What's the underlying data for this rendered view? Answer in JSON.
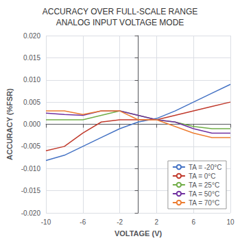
{
  "chart_data": {
    "type": "line",
    "title": "ACCURACY OVER FULL-SCALE RANGE\nANALOG INPUT VOLTAGE MODE",
    "x_label": "VOLTAGE (V)",
    "y_label": "ACCURACY (%FSR)",
    "x": [
      -10,
      -8,
      -6,
      -4,
      -2,
      0,
      2,
      4,
      6,
      8,
      10
    ],
    "series": [
      {
        "name": "TA = -20°C",
        "color": "#4472C4",
        "values": [
          -0.0082,
          -0.007,
          -0.005,
          -0.003,
          -0.001,
          0.0005,
          0.0013,
          0.003,
          0.005,
          0.007,
          0.009
        ]
      },
      {
        "name": "TA = 0°C",
        "color": "#C0392B",
        "values": [
          -0.006,
          -0.005,
          -0.002,
          0.0005,
          0.001,
          0.001,
          0.001,
          0.002,
          0.003,
          0.004,
          0.005
        ]
      },
      {
        "name": "TA = 25°C",
        "color": "#70AD47",
        "values": [
          0.001,
          0.001,
          0.001,
          0.002,
          0.003,
          0.002,
          0.001,
          0.0005,
          -0.0005,
          -0.001,
          -0.001
        ]
      },
      {
        "name": "TA = 50°C",
        "color": "#7030A0",
        "values": [
          0.0025,
          0.0022,
          0.002,
          0.003,
          0.003,
          0.002,
          0.001,
          0.0005,
          -0.001,
          -0.002,
          -0.002
        ]
      },
      {
        "name": "TA = 70°C",
        "color": "#ED7D31",
        "values": [
          0.003,
          0.003,
          0.0022,
          0.003,
          0.003,
          0.001,
          0.001,
          -0.0005,
          -0.002,
          -0.003,
          -0.003
        ]
      }
    ],
    "xlim": [
      -10,
      10
    ],
    "ylim": [
      -0.02,
      0.02
    ],
    "xticks": [
      -10,
      -6,
      -2,
      2,
      6,
      10
    ],
    "yticks": [
      {
        "value": -0.02,
        "label": "-0.020"
      },
      {
        "value": -0.015,
        "label": "-0.015"
      },
      {
        "value": -0.01,
        "label": "-0.010"
      },
      {
        "value": -0.005,
        "label": "-0.005"
      },
      {
        "value": 0,
        "label": "0.000"
      },
      {
        "value": 0.005,
        "label": "0.005"
      },
      {
        "value": 0.01,
        "label": "0.010"
      },
      {
        "value": 0.015,
        "label": "0.015"
      },
      {
        "value": 0.02,
        "label": "0.020"
      }
    ],
    "grid": true,
    "legend": "lower right"
  }
}
